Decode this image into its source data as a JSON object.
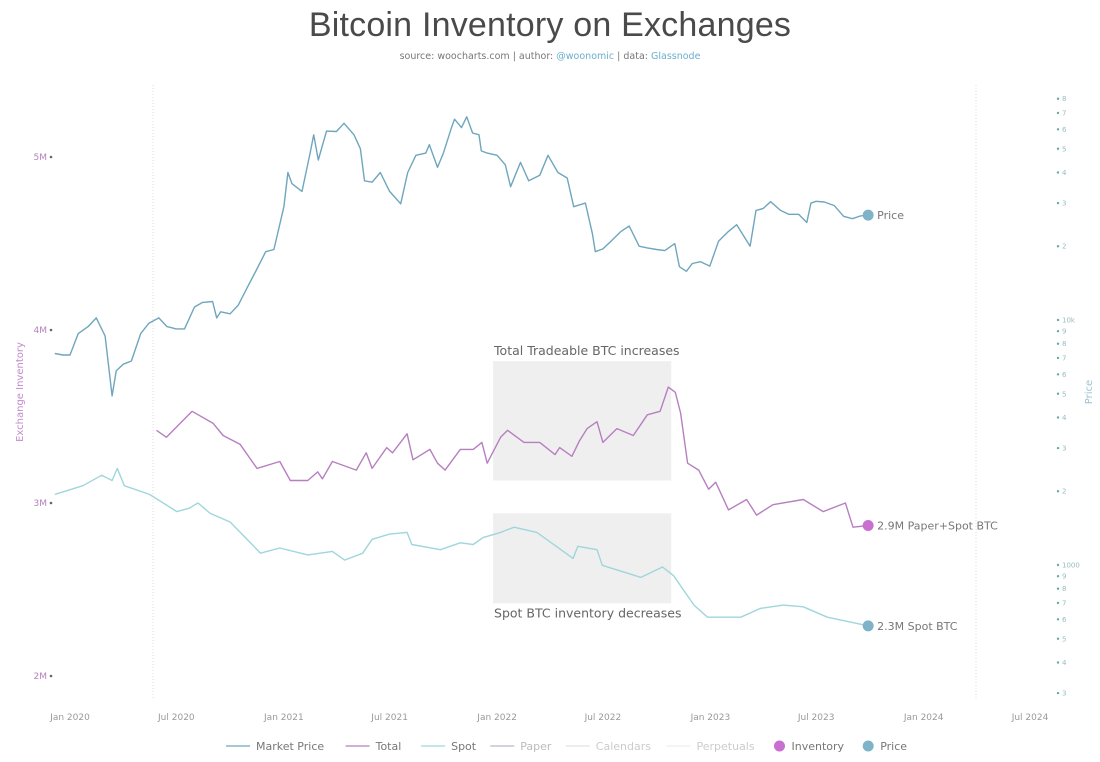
{
  "title": "Bitcoin Inventory on Exchanges",
  "subtitle": {
    "source_label": "source: woocharts.com | author: ",
    "author": "@woonomic",
    "data_label": " | data: ",
    "data_source": "Glassnode"
  },
  "chart_data": {
    "type": "line",
    "title": "Bitcoin Inventory on Exchanges",
    "x_ticks": [
      "Jan 2020",
      "Jul 2020",
      "Jan 2021",
      "Jul 2021",
      "Jan 2022",
      "Jul 2022",
      "Jan 2023",
      "Jul 2023",
      "Jan 2024",
      "Jul 2024"
    ],
    "x_tick_dates": [
      "2020-01-01",
      "2020-07-01",
      "2021-01-01",
      "2021-07-01",
      "2022-01-01",
      "2022-07-01",
      "2023-01-01",
      "2023-07-01",
      "2024-01-01",
      "2024-07-01"
    ],
    "y_left": {
      "label": "Exchange Inventory",
      "ticks": [
        "5M",
        "4M",
        "3M",
        "2M"
      ],
      "tick_values": [
        5,
        4,
        3,
        2
      ],
      "unit": "M BTC",
      "range": [
        1.9,
        5.3
      ]
    },
    "y_right": {
      "label": "Price",
      "scale": "log",
      "ticks": [
        "8",
        "7",
        "6",
        "5",
        "4",
        "3",
        "2",
        "10k",
        "9",
        "8",
        "7",
        "6",
        "5",
        "4",
        "3",
        "2",
        "1000",
        "9",
        "8",
        "7",
        "6",
        "5",
        "4",
        "3"
      ],
      "tick_values": [
        80000,
        70000,
        60000,
        50000,
        40000,
        30000,
        20000,
        10000,
        9000,
        8000,
        7000,
        6000,
        5000,
        4000,
        3000,
        2000,
        1000,
        900,
        800,
        700,
        600,
        500,
        400,
        300
      ]
    },
    "grid": false,
    "legend_position": "bottom",
    "legend": [
      {
        "label": "Market Price",
        "type": "line",
        "color": "#6fa6bd"
      },
      {
        "label": "Total",
        "type": "line",
        "color": "#b77fc0"
      },
      {
        "label": "Spot",
        "type": "line",
        "color": "#9fd6dc"
      },
      {
        "label": "Paper",
        "type": "line",
        "color": "#b9b9c9"
      },
      {
        "label": "Calendars",
        "type": "line",
        "color": "#e2e2e2"
      },
      {
        "label": "Perpetuals",
        "type": "line",
        "color": "#eeeeee"
      },
      {
        "label": "Inventory",
        "type": "dot",
        "color": "#c86fd0"
      },
      {
        "label": "Price",
        "type": "dot",
        "color": "#7fb3c8"
      }
    ],
    "series": [
      {
        "name": "Market Price",
        "axis": "right",
        "color": "#6fa6bd",
        "points": [
          [
            "2019-12-06",
            7300
          ],
          [
            "2019-12-20",
            7200
          ],
          [
            "2020-01-01",
            7200
          ],
          [
            "2020-01-15",
            8800
          ],
          [
            "2020-02-01",
            9400
          ],
          [
            "2020-02-15",
            10200
          ],
          [
            "2020-03-01",
            8600
          ],
          [
            "2020-03-13",
            4900
          ],
          [
            "2020-03-20",
            6200
          ],
          [
            "2020-04-01",
            6600
          ],
          [
            "2020-04-15",
            6800
          ],
          [
            "2020-05-01",
            8800
          ],
          [
            "2020-05-15",
            9700
          ],
          [
            "2020-06-01",
            10200
          ],
          [
            "2020-06-15",
            9400
          ],
          [
            "2020-07-01",
            9200
          ],
          [
            "2020-07-15",
            9200
          ],
          [
            "2020-08-01",
            11300
          ],
          [
            "2020-08-15",
            11800
          ],
          [
            "2020-09-01",
            11900
          ],
          [
            "2020-09-08",
            10200
          ],
          [
            "2020-09-15",
            10800
          ],
          [
            "2020-10-01",
            10600
          ],
          [
            "2020-10-15",
            11500
          ],
          [
            "2020-11-01",
            13800
          ],
          [
            "2020-11-15",
            16000
          ],
          [
            "2020-12-01",
            19000
          ],
          [
            "2020-12-15",
            19400
          ],
          [
            "2021-01-01",
            29000
          ],
          [
            "2021-01-08",
            40000
          ],
          [
            "2021-01-15",
            36000
          ],
          [
            "2021-02-01",
            33500
          ],
          [
            "2021-02-15",
            48000
          ],
          [
            "2021-02-21",
            57000
          ],
          [
            "2021-03-01",
            45000
          ],
          [
            "2021-03-15",
            59000
          ],
          [
            "2021-04-01",
            58800
          ],
          [
            "2021-04-14",
            63500
          ],
          [
            "2021-05-01",
            57000
          ],
          [
            "2021-05-12",
            50000
          ],
          [
            "2021-05-19",
            37000
          ],
          [
            "2021-06-01",
            36500
          ],
          [
            "2021-06-15",
            40000
          ],
          [
            "2021-07-01",
            33500
          ],
          [
            "2021-07-20",
            29800
          ],
          [
            "2021-08-01",
            40000
          ],
          [
            "2021-08-15",
            47000
          ],
          [
            "2021-09-01",
            48000
          ],
          [
            "2021-09-07",
            52000
          ],
          [
            "2021-09-21",
            42000
          ],
          [
            "2021-10-01",
            48000
          ],
          [
            "2021-10-15",
            61000
          ],
          [
            "2021-10-20",
            66000
          ],
          [
            "2021-11-01",
            61000
          ],
          [
            "2021-11-10",
            67500
          ],
          [
            "2021-11-20",
            58000
          ],
          [
            "2021-12-01",
            57000
          ],
          [
            "2021-12-05",
            49000
          ],
          [
            "2021-12-15",
            48000
          ],
          [
            "2022-01-01",
            47000
          ],
          [
            "2022-01-15",
            43000
          ],
          [
            "2022-01-24",
            35000
          ],
          [
            "2022-02-10",
            44000
          ],
          [
            "2022-02-24",
            37000
          ],
          [
            "2022-03-15",
            39000
          ],
          [
            "2022-03-29",
            47000
          ],
          [
            "2022-04-15",
            40000
          ],
          [
            "2022-05-01",
            38000
          ],
          [
            "2022-05-12",
            29000
          ],
          [
            "2022-06-01",
            30000
          ],
          [
            "2022-06-13",
            22500
          ],
          [
            "2022-06-18",
            19000
          ],
          [
            "2022-07-01",
            19500
          ],
          [
            "2022-07-15",
            21000
          ],
          [
            "2022-08-01",
            23000
          ],
          [
            "2022-08-15",
            24200
          ],
          [
            "2022-09-01",
            20000
          ],
          [
            "2022-09-15",
            19700
          ],
          [
            "2022-10-01",
            19400
          ],
          [
            "2022-10-15",
            19200
          ],
          [
            "2022-11-01",
            20500
          ],
          [
            "2022-11-09",
            16500
          ],
          [
            "2022-11-21",
            15800
          ],
          [
            "2022-12-01",
            17000
          ],
          [
            "2022-12-15",
            17300
          ],
          [
            "2022-12-31",
            16600
          ],
          [
            "2023-01-15",
            21000
          ],
          [
            "2023-02-01",
            23000
          ],
          [
            "2023-02-15",
            24500
          ],
          [
            "2023-03-10",
            20000
          ],
          [
            "2023-03-20",
            28000
          ],
          [
            "2023-04-01",
            28500
          ],
          [
            "2023-04-14",
            30400
          ],
          [
            "2023-05-01",
            28000
          ],
          [
            "2023-05-15",
            27000
          ],
          [
            "2023-06-01",
            27000
          ],
          [
            "2023-06-15",
            25000
          ],
          [
            "2023-06-22",
            30000
          ],
          [
            "2023-07-01",
            30500
          ],
          [
            "2023-07-15",
            30300
          ],
          [
            "2023-08-01",
            29300
          ],
          [
            "2023-08-17",
            26500
          ],
          [
            "2023-09-01",
            25900
          ],
          [
            "2023-09-15",
            26600
          ],
          [
            "2023-09-28",
            26800
          ]
        ]
      },
      {
        "name": "Total",
        "axis": "left",
        "color": "#b77fc0",
        "points": [
          [
            "2020-05-28",
            3.42
          ],
          [
            "2020-06-14",
            3.38
          ],
          [
            "2020-07-28",
            3.53
          ],
          [
            "2020-09-02",
            3.46
          ],
          [
            "2020-09-19",
            3.39
          ],
          [
            "2020-10-18",
            3.34
          ],
          [
            "2020-11-16",
            3.2
          ],
          [
            "2020-12-25",
            3.24
          ],
          [
            "2021-01-12",
            3.13
          ],
          [
            "2021-02-11",
            3.13
          ],
          [
            "2021-02-28",
            3.18
          ],
          [
            "2021-03-08",
            3.14
          ],
          [
            "2021-03-25",
            3.24
          ],
          [
            "2021-05-05",
            3.19
          ],
          [
            "2021-05-22",
            3.29
          ],
          [
            "2021-06-01",
            3.2
          ],
          [
            "2021-06-26",
            3.32
          ],
          [
            "2021-07-06",
            3.29
          ],
          [
            "2021-07-31",
            3.4
          ],
          [
            "2021-08-10",
            3.25
          ],
          [
            "2021-09-08",
            3.31
          ],
          [
            "2021-09-21",
            3.23
          ],
          [
            "2021-10-04",
            3.19
          ],
          [
            "2021-10-30",
            3.31
          ],
          [
            "2021-11-21",
            3.31
          ],
          [
            "2021-12-06",
            3.35
          ],
          [
            "2021-12-15",
            3.23
          ],
          [
            "2022-01-07",
            3.38
          ],
          [
            "2022-01-19",
            3.42
          ],
          [
            "2022-02-16",
            3.35
          ],
          [
            "2022-03-15",
            3.35
          ],
          [
            "2022-04-10",
            3.28
          ],
          [
            "2022-04-18",
            3.32
          ],
          [
            "2022-05-09",
            3.27
          ],
          [
            "2022-05-22",
            3.36
          ],
          [
            "2022-06-04",
            3.43
          ],
          [
            "2022-06-21",
            3.47
          ],
          [
            "2022-07-01",
            3.35
          ],
          [
            "2022-07-25",
            3.43
          ],
          [
            "2022-08-22",
            3.39
          ],
          [
            "2022-09-15",
            3.51
          ],
          [
            "2022-10-07",
            3.53
          ],
          [
            "2022-10-21",
            3.67
          ],
          [
            "2022-11-02",
            3.64
          ],
          [
            "2022-11-11",
            3.52
          ],
          [
            "2022-11-23",
            3.23
          ],
          [
            "2022-12-12",
            3.19
          ],
          [
            "2022-12-29",
            3.08
          ],
          [
            "2023-01-10",
            3.12
          ],
          [
            "2023-02-01",
            2.96
          ],
          [
            "2023-03-04",
            3.02
          ],
          [
            "2023-03-21",
            2.93
          ],
          [
            "2023-04-18",
            2.99
          ],
          [
            "2023-06-09",
            3.02
          ],
          [
            "2023-07-13",
            2.95
          ],
          [
            "2023-08-20",
            3.0
          ],
          [
            "2023-09-02",
            2.86
          ],
          [
            "2023-09-28",
            2.87
          ]
        ]
      },
      {
        "name": "Spot",
        "axis": "left",
        "color": "#9fd6dc",
        "points": [
          [
            "2019-12-06",
            3.05
          ],
          [
            "2020-01-23",
            3.1
          ],
          [
            "2020-02-24",
            3.16
          ],
          [
            "2020-03-13",
            3.13
          ],
          [
            "2020-03-22",
            3.2
          ],
          [
            "2020-04-03",
            3.1
          ],
          [
            "2020-05-16",
            3.05
          ],
          [
            "2020-07-02",
            2.95
          ],
          [
            "2020-07-23",
            2.97
          ],
          [
            "2020-08-07",
            3.0
          ],
          [
            "2020-08-28",
            2.94
          ],
          [
            "2020-10-01",
            2.89
          ],
          [
            "2020-10-30",
            2.79
          ],
          [
            "2020-11-22",
            2.71
          ],
          [
            "2020-12-25",
            2.74
          ],
          [
            "2021-02-11",
            2.7
          ],
          [
            "2021-03-25",
            2.72
          ],
          [
            "2021-04-15",
            2.67
          ],
          [
            "2021-05-16",
            2.71
          ],
          [
            "2021-06-01",
            2.79
          ],
          [
            "2021-07-01",
            2.82
          ],
          [
            "2021-07-31",
            2.83
          ],
          [
            "2021-08-08",
            2.76
          ],
          [
            "2021-09-26",
            2.73
          ],
          [
            "2021-10-30",
            2.77
          ],
          [
            "2021-11-21",
            2.76
          ],
          [
            "2021-12-08",
            2.8
          ],
          [
            "2022-01-07",
            2.83
          ],
          [
            "2022-01-30",
            2.86
          ],
          [
            "2022-03-10",
            2.83
          ],
          [
            "2022-05-11",
            2.68
          ],
          [
            "2022-05-19",
            2.75
          ],
          [
            "2022-06-21",
            2.73
          ],
          [
            "2022-06-30",
            2.64
          ],
          [
            "2022-09-04",
            2.57
          ],
          [
            "2022-10-11",
            2.63
          ],
          [
            "2022-10-30",
            2.58
          ],
          [
            "2022-12-04",
            2.41
          ],
          [
            "2022-12-27",
            2.34
          ],
          [
            "2023-02-22",
            2.34
          ],
          [
            "2023-03-27",
            2.39
          ],
          [
            "2023-05-06",
            2.41
          ],
          [
            "2023-06-09",
            2.4
          ],
          [
            "2023-07-20",
            2.34
          ],
          [
            "2023-09-28",
            2.29
          ]
        ]
      }
    ],
    "end_labels": {
      "price": "Price",
      "total": "2.9M Paper+Spot BTC",
      "spot": "2.3M Spot BTC"
    },
    "annotations": [
      {
        "text": "Total Tradeable BTC increases",
        "x_range": [
          "2021-12-25",
          "2022-10-26"
        ],
        "y_range": [
          3.13,
          3.82
        ],
        "position": "above"
      },
      {
        "text": "Spot BTC inventory decreases",
        "x_range": [
          "2021-12-25",
          "2022-10-26"
        ],
        "y_range": [
          2.42,
          2.94
        ],
        "position": "below"
      }
    ]
  }
}
